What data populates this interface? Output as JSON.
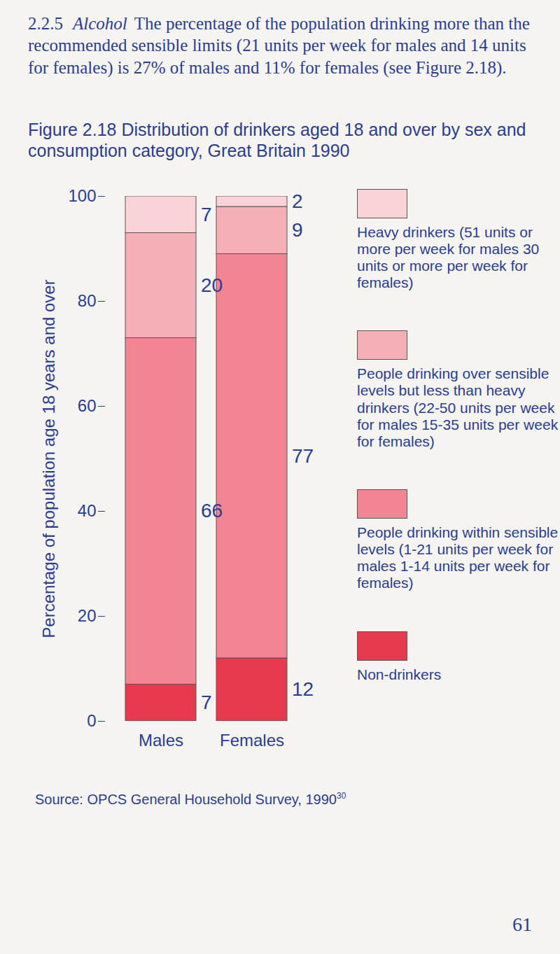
{
  "text": {
    "section_number": "2.2.5",
    "section_heading": "Alcohol",
    "paragraph": "The percentage of the population drinking more than the recommended sensible limits (21 units per week for males and 14 units for females) is 27% of males and 11% for females (see Figure 2.18).",
    "source": "Source: OPCS General Household Survey, 1990",
    "source_ref": "30",
    "page_number": "61"
  },
  "chart_data": {
    "type": "bar",
    "stacked": true,
    "data_labels": true,
    "legend": "right",
    "title": "Figure 2.18   Distribution of drinkers aged 18 and over by sex and consumption category, Great Britain 1990",
    "y_label": "Percentage of population age 18 years and over",
    "categories": [
      "Males",
      "Females"
    ],
    "ylim": [
      0,
      100
    ],
    "yticks": [
      0,
      20,
      40,
      60,
      80,
      100
    ],
    "series": [
      {
        "name": "Non-drinkers",
        "color": "#e8394e",
        "values": [
          7,
          12
        ]
      },
      {
        "name": "People drinking within sensible levels (1-21 units per week for males 1-14 units per week for females)",
        "color": "#f28593",
        "values": [
          66,
          77
        ]
      },
      {
        "name": "People drinking over sensible levels but less than heavy drinkers (22-50 units per week for males 15-35 units per week for females)",
        "color": "#f6aeb7",
        "values": [
          20,
          9
        ]
      },
      {
        "name": "Heavy drinkers (51 units or more per week for males 30 units or more per week for females)",
        "color": "#f9d3d8",
        "values": [
          7,
          2
        ]
      }
    ]
  }
}
